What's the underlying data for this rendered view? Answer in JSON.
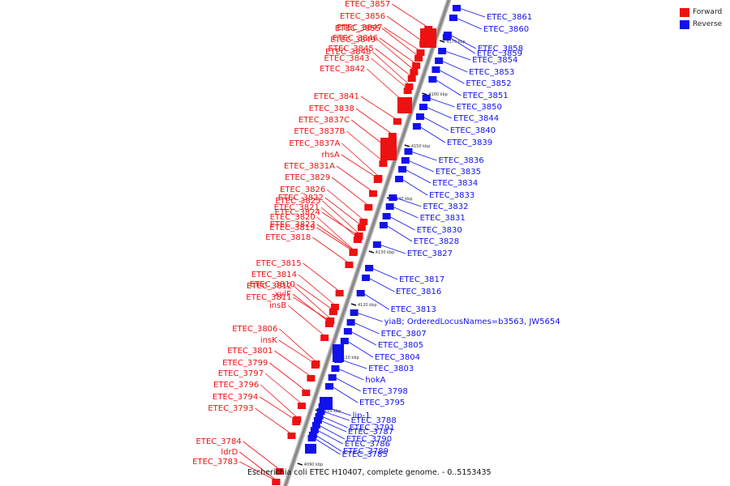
{
  "caption": "Escherichia coli ETEC H10407, complete genome. - 0..5153435",
  "legend": {
    "forward": {
      "label": "Forward",
      "color": "#ee1111"
    },
    "reverse": {
      "label": "Reverse",
      "color": "#1111ee"
    }
  },
  "colors": {
    "forward": "#ee1111",
    "reverse": "#1111ee",
    "axis": "#888888",
    "tick": "#111111"
  },
  "ticks": [
    "4090 kbp",
    "4100 kbp",
    "4110 kbp",
    "4120 kbp",
    "4130 kbp",
    "4140 kbp",
    "4150 kbp",
    "4160 kbp",
    "4170 kbp"
  ],
  "forward_genes": [
    "ETEC_3857",
    "ETEC_3856",
    "ETEC_3855",
    "ETEC_3849",
    "ETEC_3848",
    "ETEC_3847",
    "ETEC_3846",
    "ETEC_3845",
    "ETEC_3843",
    "ETEC_3842",
    "ETEC_3841",
    "ETEC_3838",
    "ETEC_3837C",
    "ETEC_3837B",
    "ETEC_3837A",
    "rhsA",
    "ETEC_3831A",
    "ETEC_3829",
    "ETEC_3826",
    "ETEC_3825",
    "ETEC_3824",
    "ETEC_3823",
    "ETEC_3822",
    "ETEC_3821",
    "ETEC_3820",
    "ETEC_3819",
    "ETEC_3818",
    "ETEC_3815",
    "ETEC_3814",
    "ETEC_3812",
    "ETEC_3811",
    "ETEC_3810",
    "xylF",
    "insB",
    "ETEC_3806",
    "insK",
    "ETEC_3801",
    "ETEC_3799",
    "ETEC_3797",
    "ETEC_3796",
    "ETEC_3794",
    "ETEC_3793",
    "ETEC_3784",
    "ldrD",
    "ETEC_3783"
  ],
  "reverse_genes": [
    "ETEC_3861",
    "ETEC_3860",
    "ETEC_3858",
    "ETEC_3859",
    "ETEC_3854",
    "ETEC_3853",
    "ETEC_3852",
    "ETEC_3851",
    "ETEC_3850",
    "ETEC_3844",
    "ETEC_3840",
    "ETEC_3839",
    "ETEC_3836",
    "ETEC_3835",
    "ETEC_3834",
    "ETEC_3833",
    "ETEC_3832",
    "ETEC_3831",
    "ETEC_3830",
    "ETEC_3828",
    "ETEC_3827",
    "ETEC_3817",
    "ETEC_3816",
    "ETEC_3813",
    "yiaB; OrderedLocusNames=b3563, JW5654",
    "ETEC_3807",
    "ETEC_3805",
    "ETEC_3804",
    "ETEC_3803",
    "hokA",
    "ETEC_3798",
    "ETEC_3795",
    "lip-1",
    "ETEC_3791",
    "ETEC_3790",
    "ETEC_3789",
    "ETEC_3788",
    "ETEC_3787",
    "ETEC_3786",
    "ETEC_3785"
  ]
}
